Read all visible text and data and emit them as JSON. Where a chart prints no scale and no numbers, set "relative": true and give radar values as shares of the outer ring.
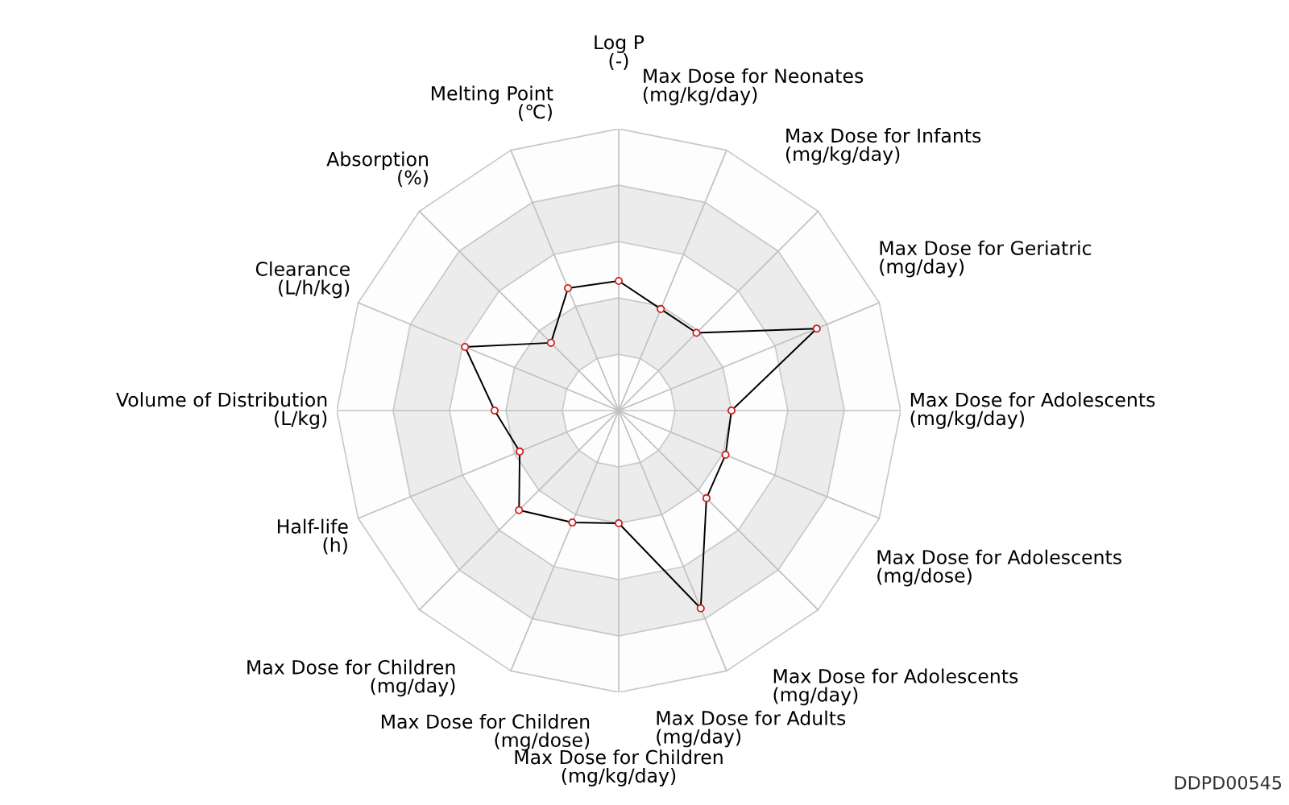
{
  "chart_data": {
    "type": "radar",
    "relative": true,
    "grid": true,
    "marker": "circle",
    "line_style": "solid",
    "categories": [
      "Log P\n(-)",
      "Max Dose for Neonates\n(mg/kg/day)",
      "Max Dose for Infants\n(mg/kg/day)",
      "Max Dose for Geriatric\n(mg/day)",
      "Max Dose for Adolescents\n(mg/kg/day)",
      "Max Dose for Adolescents\n(mg/dose)",
      "Max Dose for Adolescents\n(mg/day)",
      "Max Dose for Adults\n(mg/day)",
      "Max Dose for Children\n(mg/kg/day)",
      "Max Dose for Children\n(mg/dose)",
      "Max Dose for Children\n(mg/day)",
      "Half-life\n(h)",
      "Volume of Distribution\n(L/kg)",
      "Clearance\n(L/h/kg)",
      "Absorption\n(%)",
      "Melting Point\n(℃)"
    ],
    "series": [
      {
        "color": "#000000",
        "values": [
          0.46,
          0.39,
          0.39,
          0.76,
          0.4,
          0.41,
          0.44,
          0.76,
          0.4,
          0.43,
          0.5,
          0.38,
          0.44,
          0.59,
          0.34,
          0.47
        ]
      }
    ],
    "annotations": [
      "DDPD00545"
    ]
  }
}
